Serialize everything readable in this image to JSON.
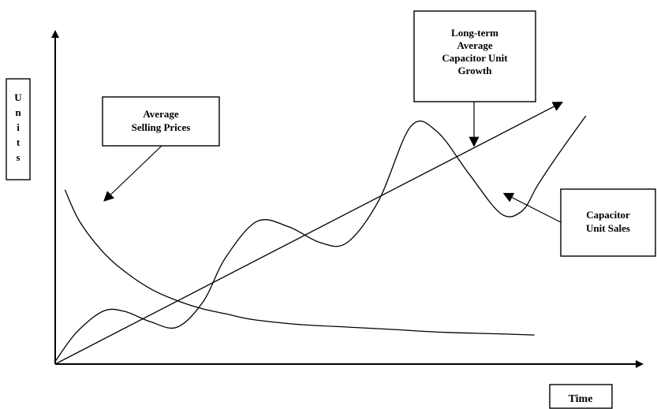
{
  "chart_data": {
    "type": "line",
    "title": "",
    "xlabel": "Time",
    "ylabel": "Units",
    "axis_numbers_shown": false,
    "grid": false,
    "series": [
      {
        "name": "Average Selling Prices",
        "shape": "decreasing curve that levels off",
        "x": [
          0.02,
          0.05,
          0.1,
          0.15,
          0.2,
          0.25,
          0.3,
          0.35,
          0.4,
          0.5,
          0.6,
          0.7,
          0.8,
          0.9,
          0.98
        ],
        "y": [
          0.66,
          0.54,
          0.42,
          0.34,
          0.28,
          0.24,
          0.21,
          0.19,
          0.17,
          0.15,
          0.14,
          0.13,
          0.12,
          0.115,
          0.11
        ]
      },
      {
        "name": "Capacitor Unit Sales",
        "shape": "oscillating curve with increasing trend",
        "x": [
          0,
          0.04,
          0.09,
          0.13,
          0.18,
          0.23,
          0.28,
          0.32,
          0.38,
          0.44,
          0.5,
          0.55,
          0.61,
          0.67,
          0.72,
          0.78,
          0.84,
          0.88,
          0.91,
          0.95,
          1
        ],
        "y": [
          0.01,
          0.12,
          0.2,
          0.2,
          0.16,
          0.14,
          0.24,
          0.4,
          0.54,
          0.52,
          0.46,
          0.46,
          0.62,
          0.9,
          0.88,
          0.72,
          0.57,
          0.58,
          0.68,
          0.8,
          0.94
        ]
      },
      {
        "name": "Long-term Average Capacitor Unit Growth",
        "shape": "straight trend line",
        "x": [
          0,
          1
        ],
        "y": [
          0,
          0.9
        ]
      }
    ],
    "annotations": [
      {
        "id": "asp",
        "lines": [
          "Average",
          "Selling Prices"
        ],
        "target_series": 0
      },
      {
        "id": "growth",
        "lines": [
          "Long-term",
          "Average",
          "Capacitor Unit",
          "Growth"
        ],
        "target_series": 2
      },
      {
        "id": "sales",
        "lines": [
          "Capacitor",
          "Unit Sales"
        ],
        "target_series": 1
      }
    ],
    "ylabel_letters": [
      "U",
      "n",
      "i",
      "t",
      "s"
    ]
  }
}
